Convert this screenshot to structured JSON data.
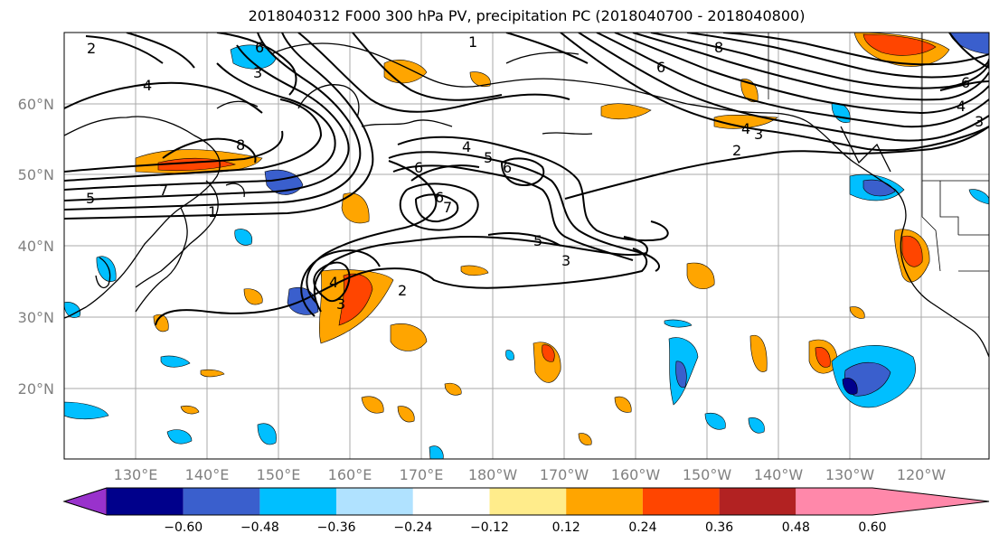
{
  "title": "2018040312 F000 300 hPa PV, precipitation PC (2018040700 - 2018040800)",
  "map": {
    "lon_labels": [
      "130°E",
      "140°E",
      "150°E",
      "160°E",
      "170°E",
      "180°W",
      "170°W",
      "160°W",
      "150°W",
      "140°W",
      "130°W",
      "120°W"
    ],
    "lat_labels": [
      "60°N",
      "50°N",
      "40°N",
      "30°N",
      "20°N"
    ],
    "contour_labels": [
      "2",
      "3",
      "4",
      "5",
      "6",
      "7",
      "8",
      "1"
    ]
  },
  "colorbar": {
    "tick_labels": [
      "−0.60",
      "−0.48",
      "−0.36",
      "−0.24",
      "−0.12",
      "0.12",
      "0.24",
      "0.36",
      "0.48",
      "0.60"
    ],
    "colors": [
      "#9932cc",
      "#00008b",
      "#3a5fcd",
      "#00bfff",
      "#b0e2ff",
      "#ffffff",
      "#ffec8b",
      "#ffa500",
      "#ff4500",
      "#b22222",
      "#ff88aa"
    ]
  }
}
